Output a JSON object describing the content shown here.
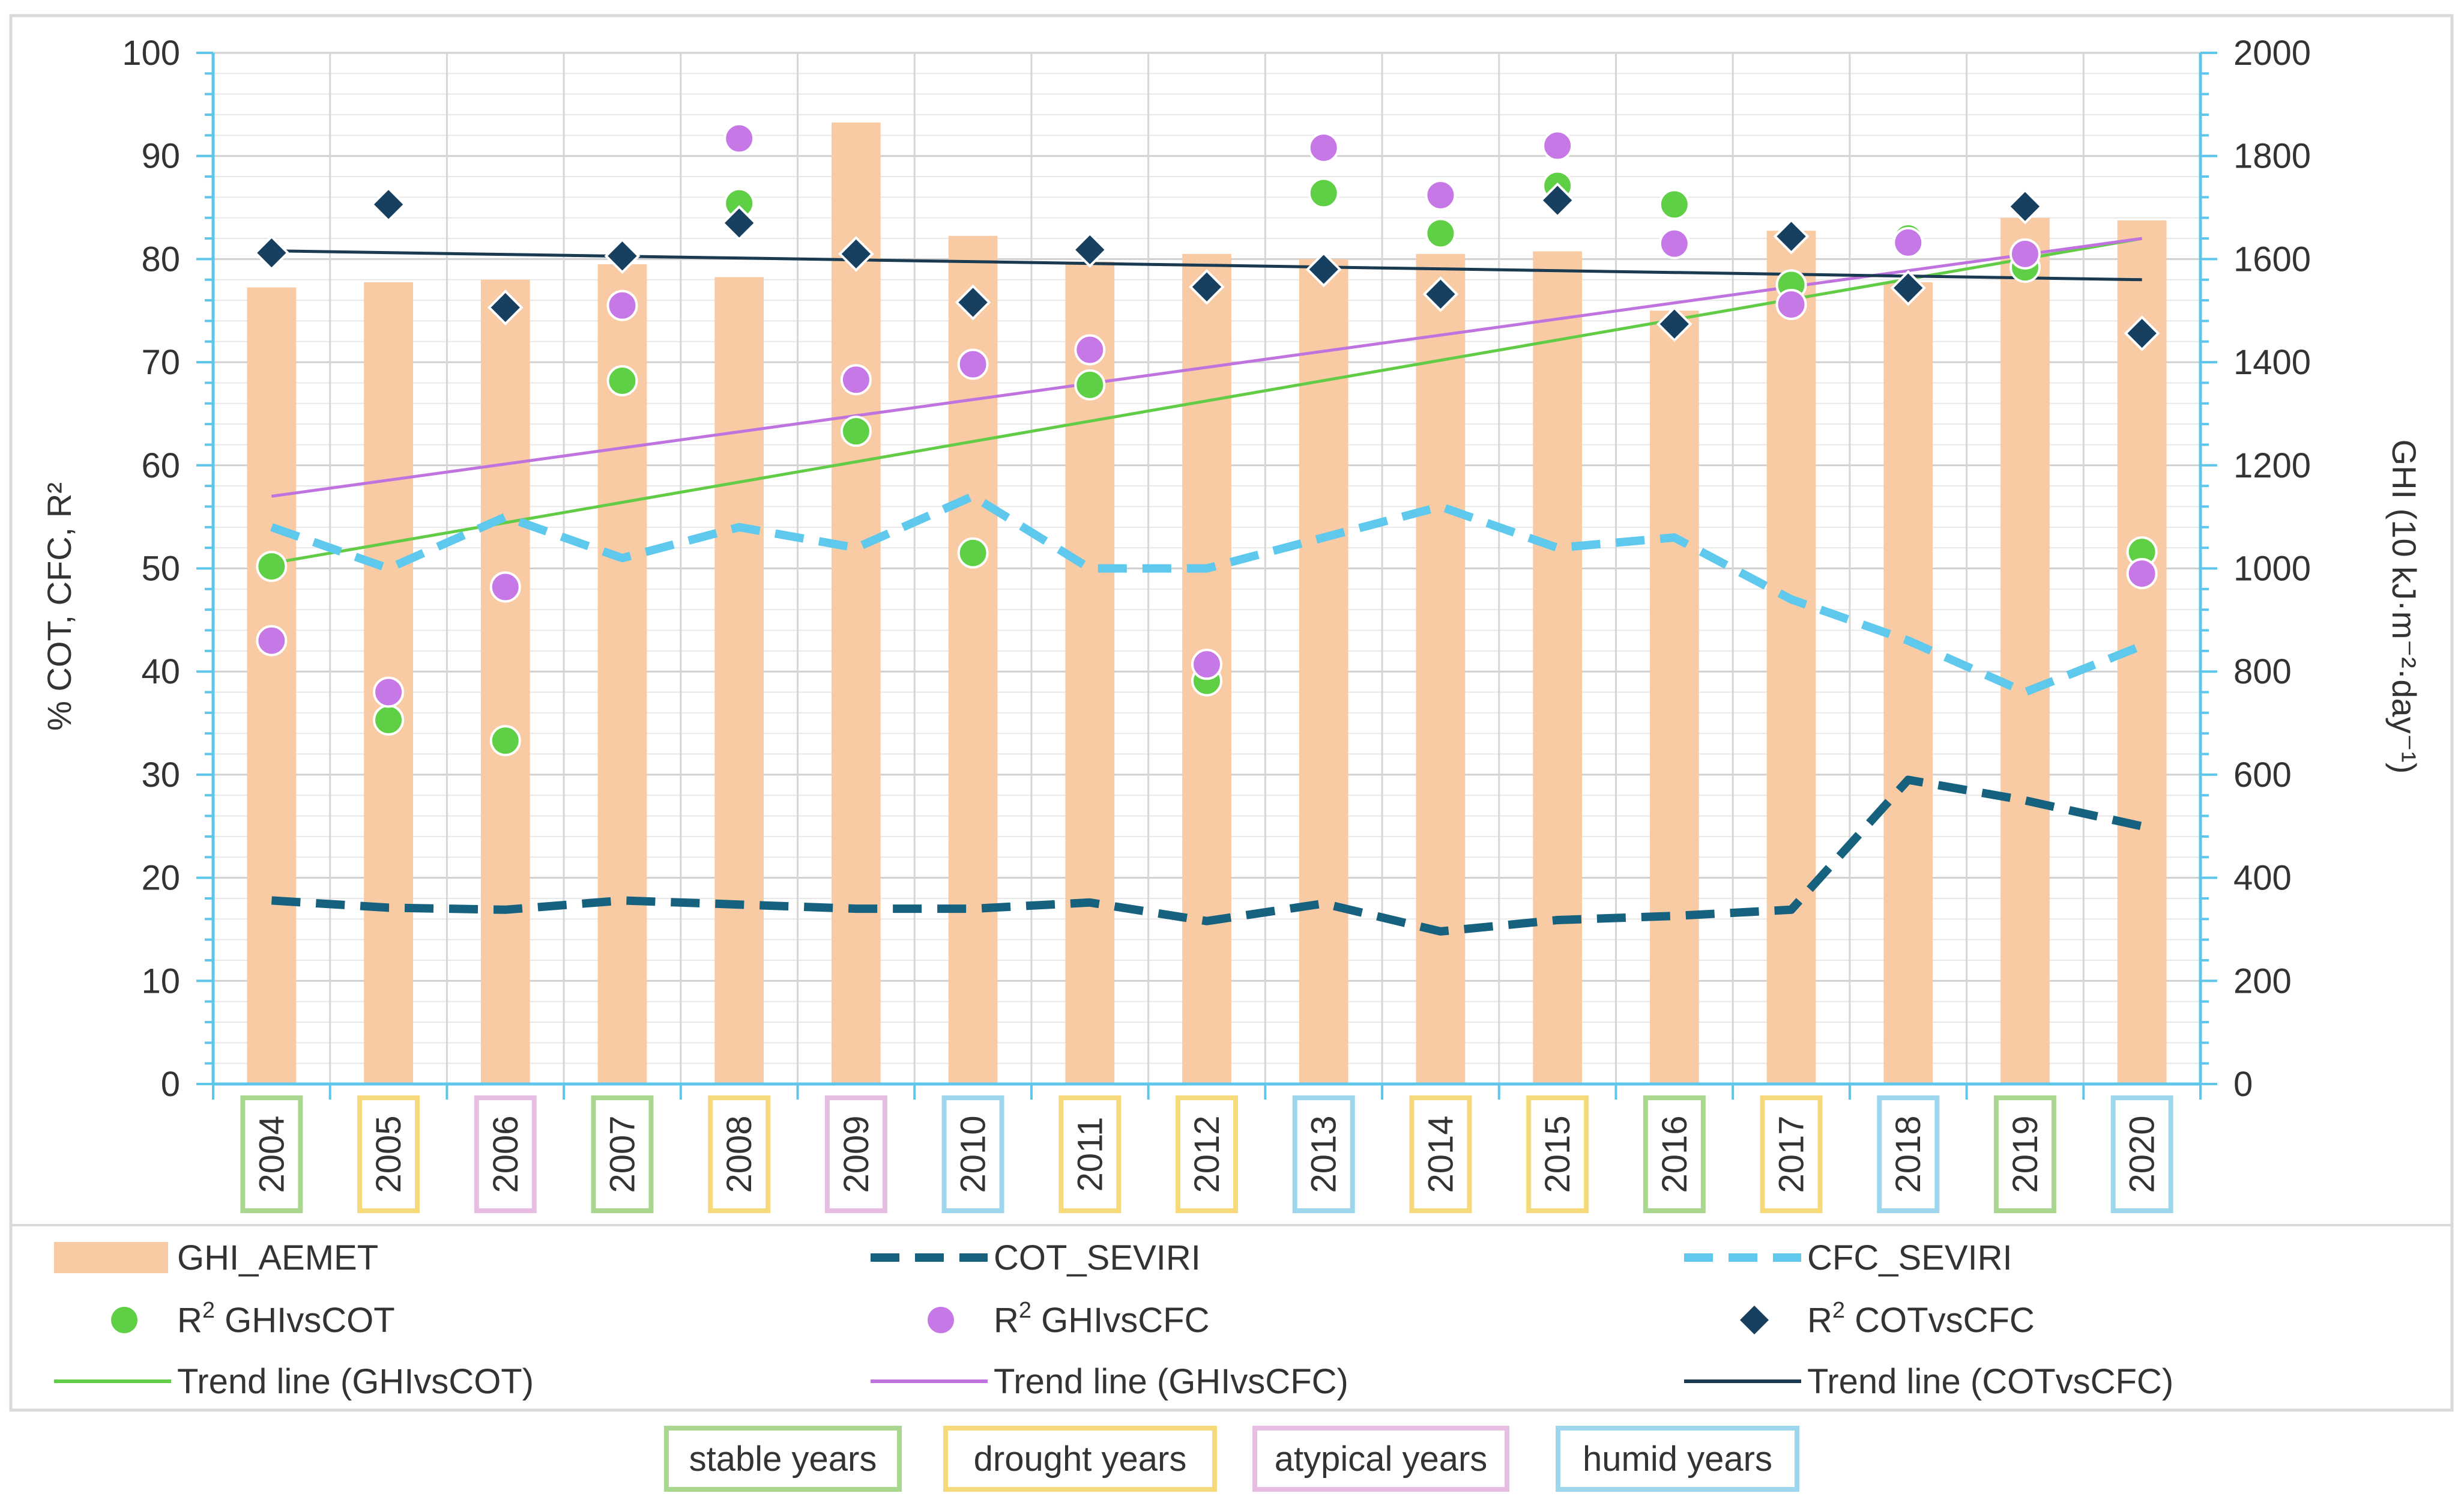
{
  "chart_data": {
    "type": "combo",
    "years": [
      "2004",
      "2005",
      "2006",
      "2007",
      "2008",
      "2009",
      "2010",
      "2011",
      "2012",
      "2013",
      "2014",
      "2015",
      "2016",
      "2017",
      "2018",
      "2019",
      "2020"
    ],
    "year_group": [
      "stable",
      "drought",
      "atypical",
      "stable",
      "drought",
      "atypical",
      "humid",
      "drought",
      "drought",
      "humid",
      "drought",
      "drought",
      "stable",
      "drought",
      "humid",
      "stable",
      "humid"
    ],
    "y_left": {
      "label": "% COT, CFC, R²",
      "min": 0,
      "max": 100,
      "ticks": [
        "0",
        "10",
        "20",
        "30",
        "40",
        "50",
        "60",
        "70",
        "80",
        "90",
        "100"
      ]
    },
    "y_right": {
      "label": "GHI (10 kJ·m⁻²·day⁻¹)",
      "min": 0,
      "max": 2000,
      "ticks": [
        "0",
        "200",
        "400",
        "600",
        "800",
        "1000",
        "1200",
        "1400",
        "1600",
        "1800",
        "2000"
      ]
    },
    "series": {
      "GHI_AEMET": {
        "label": "GHI_AEMET",
        "kind": "bar",
        "axis": "right",
        "color": "#F8CBA4",
        "values": [
          1545,
          1555,
          1560,
          1590,
          1565,
          1865,
          1645,
          1595,
          1610,
          1600,
          1610,
          1615,
          1500,
          1655,
          1555,
          1680,
          1675
        ]
      },
      "COT_SEVIRI": {
        "label": "COT_SEVIRI",
        "kind": "dashed-line",
        "axis": "left",
        "color": "#15617E",
        "values": [
          17.8,
          17.1,
          16.9,
          17.8,
          17.4,
          17.0,
          17.0,
          17.6,
          15.8,
          17.5,
          14.8,
          15.9,
          16.3,
          16.9,
          29.5,
          27.5,
          25.0
        ]
      },
      "CFC_SEVIRI": {
        "label": "CFC_SEVIRI",
        "kind": "dashed-line",
        "axis": "left",
        "color": "#5EC9EC",
        "values": [
          54.0,
          50.0,
          55.0,
          51.0,
          54.0,
          52.0,
          57.0,
          50.0,
          50.0,
          53.0,
          56.0,
          52.0,
          53.0,
          47.0,
          43.0,
          38.0,
          42.5
        ]
      },
      "R2_GHIvsCOT": {
        "label": "GHIvsCOT",
        "kind": "marker-circle",
        "axis": "left",
        "color": "#5FCF45",
        "values": [
          50.2,
          35.3,
          33.3,
          68.2,
          85.4,
          63.3,
          51.5,
          67.8,
          39.1,
          86.4,
          82.5,
          87.1,
          85.3,
          77.5,
          82.0,
          79.2,
          51.6
        ]
      },
      "R2_GHIvsCFC": {
        "label": "GHIvsCFC",
        "kind": "marker-circle",
        "axis": "left",
        "color": "#C678E6",
        "values": [
          43.0,
          38.0,
          48.2,
          75.5,
          91.7,
          68.3,
          69.8,
          71.2,
          40.7,
          90.8,
          86.2,
          91.0,
          81.5,
          75.6,
          81.6,
          80.5,
          49.5
        ]
      },
      "R2_COTvsCFC": {
        "label": "COTvsCFC",
        "kind": "marker-diamond",
        "axis": "left",
        "color": "#173F5F",
        "values": [
          80.6,
          85.3,
          75.3,
          80.3,
          83.5,
          80.5,
          75.8,
          80.9,
          77.3,
          79.0,
          76.6,
          85.7,
          73.7,
          82.2,
          77.2,
          85.1,
          72.8
        ]
      },
      "Trend_GHIvsCOT": {
        "label": "Trend line (GHIvsCOT)",
        "kind": "line",
        "axis": "left",
        "color": "#62CC47",
        "start": 50.5,
        "end": 82.0
      },
      "Trend_GHIvsCFC": {
        "label": "Trend line (GHIvsCFC)",
        "kind": "line",
        "axis": "left",
        "color": "#BF73DF",
        "start": 57.0,
        "end": 82.0
      },
      "Trend_COTvsCFC": {
        "label": "Trend line (COTvsCFC)",
        "kind": "line",
        "axis": "left",
        "color": "#1A3A52",
        "start": 80.8,
        "end": 78.0
      }
    },
    "legend": {
      "items": [
        {
          "key": "GHI_AEMET",
          "text": "GHI_AEMET",
          "prefix": "",
          "sup": ""
        },
        {
          "key": "COT_SEVIRI",
          "text": "COT_SEVIRI",
          "prefix": "",
          "sup": ""
        },
        {
          "key": "CFC_SEVIRI",
          "text": "CFC_SEVIRI",
          "prefix": "",
          "sup": ""
        },
        {
          "key": "R2_GHIvsCOT",
          "text": "GHIvsCOT",
          "prefix": "R",
          "sup": "2"
        },
        {
          "key": "R2_GHIvsCFC",
          "text": "GHIvsCFC",
          "prefix": "R",
          "sup": "2"
        },
        {
          "key": "R2_COTvsCFC",
          "text": "COTvsCFC",
          "prefix": "R",
          "sup": "2"
        },
        {
          "key": "Trend_GHIvsCOT",
          "text": "Trend line (GHIvsCOT)",
          "prefix": "",
          "sup": ""
        },
        {
          "key": "Trend_GHIvsCFC",
          "text": "Trend line (GHIvsCFC)",
          "prefix": "",
          "sup": ""
        },
        {
          "key": "Trend_COTvsCFC",
          "text": "Trend line (COTvsCFC)",
          "prefix": "",
          "sup": ""
        }
      ]
    },
    "year_groups": {
      "stable": {
        "label": "stable years",
        "color": "#A9D78F"
      },
      "drought": {
        "label": "drought years",
        "color": "#F5D97A"
      },
      "atypical": {
        "label": "atypical years",
        "color": "#E8BDE2"
      },
      "humid": {
        "label": "humid years",
        "color": "#9ED6EE"
      }
    },
    "year_group_order": [
      "stable",
      "drought",
      "atypical",
      "humid"
    ],
    "grid": true
  }
}
